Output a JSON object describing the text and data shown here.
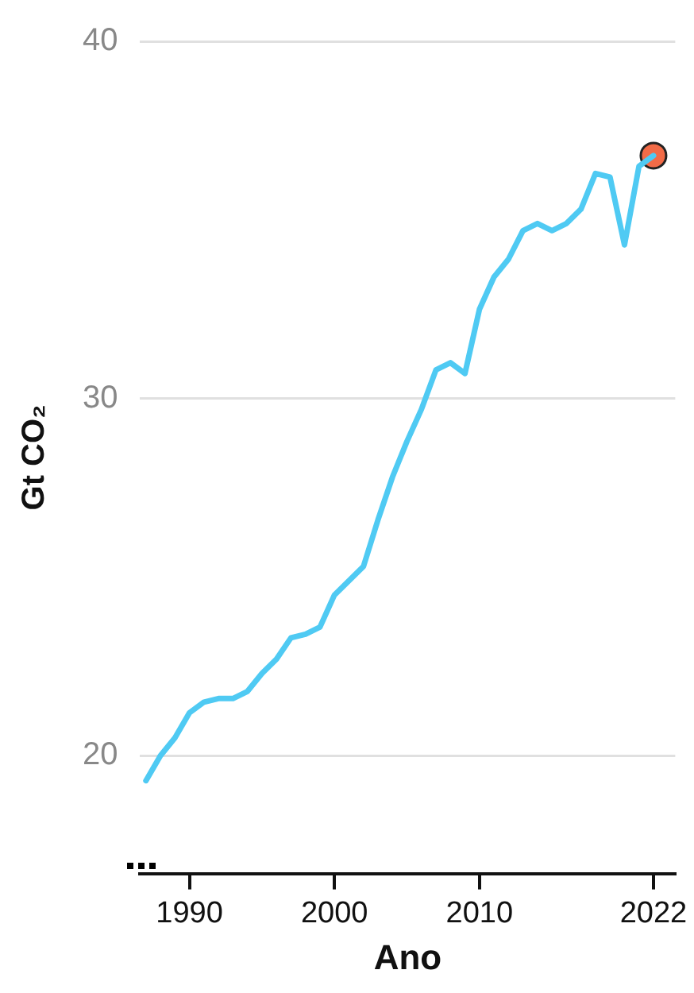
{
  "chart_data": {
    "type": "line",
    "xlabel": "Ano",
    "ylabel": "Gt CO₂",
    "xlim": [
      1986.6,
      2023.5
    ],
    "xticks": [
      1990,
      2000,
      2010,
      2022
    ],
    "ylim": [
      16.7,
      40
    ],
    "yticks": [
      20,
      30,
      40
    ],
    "grid": "y",
    "series": [
      {
        "color": "#4fcaf3",
        "x": [
          1987,
          1988,
          1989,
          1990,
          1991,
          1992,
          1993,
          1994,
          1995,
          1996,
          1997,
          1998,
          1999,
          2000,
          2001,
          2002,
          2003,
          2004,
          2005,
          2006,
          2007,
          2008,
          2009,
          2010,
          2011,
          2012,
          2013,
          2014,
          2015,
          2016,
          2017,
          2018,
          2019,
          2020,
          2021,
          2022
        ],
        "values": [
          19.3,
          20.0,
          20.5,
          21.2,
          21.5,
          21.6,
          21.6,
          21.8,
          22.3,
          22.7,
          23.3,
          23.4,
          23.6,
          24.5,
          24.9,
          25.3,
          26.6,
          27.8,
          28.8,
          29.7,
          30.8,
          31.0,
          30.7,
          32.5,
          33.4,
          33.9,
          34.7,
          34.9,
          34.7,
          34.9,
          35.3,
          36.3,
          36.2,
          34.3,
          36.5,
          36.8
        ]
      },
      {
        "type": "scatter",
        "color": "#f26b47",
        "marker": "circle",
        "x": [
          2022
        ],
        "values": [
          36.8
        ]
      }
    ]
  }
}
